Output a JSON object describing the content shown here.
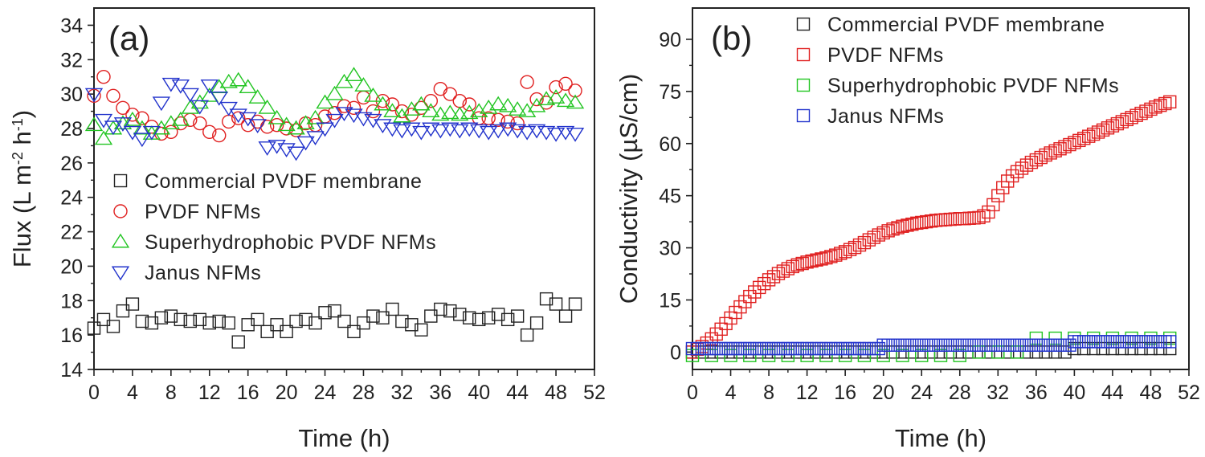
{
  "chart_data": [
    {
      "type": "scatter",
      "panel_label": "(a)",
      "xlabel": "Time (h)",
      "ylabel": {
        "main": "Flux (L m",
        "sup1": "-2",
        "mid": " h",
        "sup2": "-1",
        "end": ")"
      },
      "xlim": [
        0,
        52
      ],
      "ylim": [
        14,
        35
      ],
      "xticks": [
        "0",
        "4",
        "8",
        "12",
        "16",
        "20",
        "24",
        "28",
        "32",
        "36",
        "40",
        "44",
        "48",
        "52"
      ],
      "yticks": [
        "14",
        "16",
        "18",
        "20",
        "22",
        "24",
        "26",
        "28",
        "30",
        "32",
        "34"
      ],
      "grid": false,
      "legend_position": "lower-left",
      "series": [
        {
          "name": "Commercial  PVDF membrane",
          "marker": "square",
          "color": "#222222",
          "x": [
            0,
            1,
            2,
            3,
            4,
            5,
            6,
            7,
            8,
            9,
            10,
            11,
            12,
            13,
            14,
            15,
            16,
            17,
            18,
            19,
            20,
            21,
            22,
            23,
            24,
            25,
            26,
            27,
            28,
            29,
            30,
            31,
            32,
            33,
            34,
            35,
            36,
            37,
            38,
            39,
            40,
            41,
            42,
            43,
            44,
            45,
            46,
            47,
            48,
            49,
            50
          ],
          "y": [
            16.4,
            16.9,
            16.5,
            17.4,
            17.8,
            16.8,
            16.7,
            17.0,
            17.1,
            16.9,
            16.8,
            16.9,
            16.7,
            16.8,
            16.7,
            15.6,
            16.6,
            16.9,
            16.2,
            16.6,
            16.2,
            16.8,
            16.9,
            16.7,
            17.3,
            17.4,
            16.8,
            16.2,
            16.7,
            17.1,
            17.0,
            17.5,
            16.8,
            16.6,
            16.3,
            17.1,
            17.5,
            17.4,
            17.2,
            17.0,
            16.9,
            17.0,
            17.2,
            16.9,
            17.1,
            16.0,
            16.7,
            18.1,
            17.8,
            17.1,
            17.8
          ]
        },
        {
          "name": "PVDF NFMs",
          "marker": "circle",
          "color": "#e02020",
          "x": [
            0,
            1,
            2,
            3,
            4,
            5,
            6,
            7,
            8,
            9,
            10,
            11,
            12,
            13,
            14,
            15,
            16,
            17,
            18,
            19,
            20,
            21,
            22,
            23,
            24,
            25,
            26,
            27,
            28,
            29,
            30,
            31,
            32,
            33,
            34,
            35,
            36,
            37,
            38,
            39,
            40,
            41,
            42,
            43,
            44,
            45,
            46,
            47,
            48,
            49,
            50
          ],
          "y": [
            29.9,
            31.0,
            29.9,
            29.2,
            28.8,
            28.6,
            28.1,
            27.7,
            27.8,
            28.3,
            28.5,
            28.3,
            27.8,
            27.6,
            28.4,
            28.6,
            28.2,
            28.4,
            28.1,
            28.2,
            28.0,
            27.9,
            28.3,
            28.2,
            28.7,
            28.9,
            29.3,
            29.2,
            29.8,
            29.0,
            29.6,
            29.4,
            29.0,
            28.8,
            29.2,
            29.6,
            30.3,
            30.0,
            29.6,
            29.4,
            28.6,
            28.6,
            28.5,
            28.4,
            28.3,
            30.7,
            29.7,
            29.5,
            30.4,
            30.6,
            30.2
          ]
        },
        {
          "name": "Superhydrophobic PVDF NFMs",
          "marker": "triangle-up",
          "color": "#22c522",
          "x": [
            0,
            1,
            2,
            3,
            4,
            5,
            6,
            7,
            8,
            9,
            10,
            11,
            12,
            13,
            14,
            15,
            16,
            17,
            18,
            19,
            20,
            21,
            22,
            23,
            24,
            25,
            26,
            27,
            28,
            29,
            30,
            31,
            32,
            33,
            34,
            35,
            36,
            37,
            38,
            39,
            40,
            41,
            42,
            43,
            44,
            45,
            46,
            47,
            48,
            49,
            50
          ],
          "y": [
            28.2,
            27.4,
            28.0,
            28.3,
            28.5,
            28.0,
            27.7,
            28.0,
            28.3,
            28.5,
            29.2,
            29.5,
            29.9,
            30.4,
            30.7,
            30.8,
            30.4,
            29.8,
            29.2,
            28.6,
            28.2,
            28.0,
            28.3,
            28.6,
            29.5,
            30.0,
            30.7,
            31.1,
            30.5,
            29.9,
            29.4,
            29.0,
            28.7,
            29.1,
            29.4,
            29.0,
            28.8,
            28.9,
            28.8,
            28.9,
            29.0,
            29.2,
            29.4,
            29.3,
            29.1,
            29.0,
            29.3,
            29.7,
            29.8,
            29.6,
            29.5
          ]
        },
        {
          "name": "Janus  NFMs",
          "marker": "triangle-down",
          "color": "#2233cc",
          "x": [
            0,
            1,
            2,
            3,
            4,
            5,
            6,
            7,
            8,
            9,
            10,
            11,
            12,
            13,
            14,
            15,
            16,
            17,
            18,
            19,
            20,
            21,
            22,
            23,
            24,
            25,
            26,
            27,
            28,
            29,
            30,
            31,
            32,
            33,
            34,
            35,
            36,
            37,
            38,
            39,
            40,
            41,
            42,
            43,
            44,
            45,
            46,
            47,
            48,
            49,
            50
          ],
          "y": [
            30.0,
            28.5,
            28.1,
            28.3,
            27.8,
            27.4,
            27.8,
            29.5,
            30.6,
            30.5,
            30.0,
            29.3,
            30.5,
            29.8,
            29.2,
            28.8,
            28.6,
            28.2,
            26.9,
            27.0,
            26.8,
            26.6,
            27.2,
            27.5,
            28.0,
            28.5,
            28.9,
            28.8,
            28.6,
            28.5,
            28.2,
            28.0,
            27.9,
            28.0,
            27.8,
            28.0,
            27.9,
            28.0,
            27.9,
            28.0,
            27.9,
            27.8,
            27.9,
            28.0,
            27.9,
            27.8,
            27.9,
            27.8,
            27.7,
            27.8,
            27.7
          ]
        }
      ]
    },
    {
      "type": "scatter",
      "panel_label": "(b)",
      "xlabel": "Time (h)",
      "ylabel": {
        "main": "Conductivity (µS/cm)"
      },
      "xlim": [
        0,
        52
      ],
      "ylim": [
        -5,
        99
      ],
      "xticks": [
        "0",
        "4",
        "8",
        "12",
        "16",
        "20",
        "24",
        "28",
        "32",
        "36",
        "40",
        "44",
        "48",
        "52"
      ],
      "yticks": [
        "0",
        "15",
        "30",
        "45",
        "60",
        "75",
        "90"
      ],
      "grid": false,
      "legend_position": "top-right",
      "series": [
        {
          "name": "Commercial  PVDF membrane",
          "marker": "square-open",
          "color": "#222222",
          "x": [
            0,
            1,
            2,
            3,
            4,
            5,
            6,
            7,
            8,
            9,
            10,
            11,
            12,
            13,
            14,
            15,
            16,
            17,
            18,
            19,
            20,
            21,
            22,
            23,
            24,
            25,
            26,
            27,
            28,
            29,
            30,
            31,
            32,
            33,
            34,
            35,
            36,
            37,
            38,
            39,
            40,
            41,
            42,
            43,
            44,
            45,
            46,
            47,
            48,
            49,
            50
          ],
          "y": [
            0,
            0,
            0,
            0,
            0,
            0,
            0,
            0,
            0,
            0,
            0,
            0,
            0,
            0,
            0,
            0,
            0,
            0,
            0,
            0,
            0,
            0,
            0,
            0,
            0,
            0,
            0,
            0,
            0,
            0,
            0,
            0,
            0,
            0,
            0,
            0,
            0,
            0,
            0,
            0,
            1,
            1,
            1,
            1,
            1,
            1,
            1,
            1,
            1,
            1,
            1
          ]
        },
        {
          "name": "PVDF NFMs",
          "marker": "square-open",
          "color": "#e02020",
          "x": [
            0,
            0.5,
            1,
            1.5,
            2,
            2.5,
            3,
            3.5,
            4,
            4.5,
            5,
            5.5,
            6,
            6.5,
            7,
            7.5,
            8,
            8.5,
            9,
            9.5,
            10,
            10.5,
            11,
            11.5,
            12,
            12.5,
            13,
            13.5,
            14,
            14.5,
            15,
            15.5,
            16,
            16.5,
            17,
            17.5,
            18,
            18.5,
            19,
            19.5,
            20,
            20.5,
            21,
            21.5,
            22,
            22.5,
            23,
            23.5,
            24,
            24.5,
            25,
            25.5,
            26,
            26.5,
            27,
            27.5,
            28,
            28.5,
            29,
            29.5,
            30,
            30.5,
            31,
            31.5,
            32,
            32.5,
            33,
            33.5,
            34,
            34.5,
            35,
            35.5,
            36,
            36.5,
            37,
            37.5,
            38,
            38.5,
            39,
            39.5,
            40,
            40.5,
            41,
            41.5,
            42,
            42.5,
            43,
            43.5,
            44,
            44.5,
            45,
            45.5,
            46,
            46.5,
            47,
            47.5,
            48,
            48.5,
            49,
            49.5,
            50
          ],
          "y": [
            0,
            0.8,
            1.6,
            2.6,
            3.8,
            5.2,
            6.6,
            8.2,
            9.8,
            11.4,
            13,
            14.5,
            16,
            17.3,
            18.6,
            19.7,
            20.8,
            21.7,
            22.6,
            23.3,
            24,
            24.6,
            25.1,
            25.5,
            25.9,
            26.2,
            26.5,
            26.8,
            27.1,
            27.5,
            27.9,
            28.4,
            28.9,
            29.5,
            30.1,
            30.8,
            31.5,
            32.3,
            33,
            33.7,
            34.3,
            34.9,
            35.4,
            35.8,
            36.2,
            36.5,
            36.8,
            37.1,
            37.3,
            37.5,
            37.7,
            37.9,
            38,
            38.1,
            38.2,
            38.3,
            38.4,
            38.4,
            38.5,
            38.6,
            38.7,
            39.2,
            40.3,
            42.4,
            45,
            47.3,
            49.2,
            50.7,
            51.9,
            52.9,
            53.8,
            54.6,
            55.3,
            56,
            56.7,
            57.3,
            57.9,
            58.5,
            59.1,
            59.7,
            60.3,
            60.9,
            61.5,
            62.1,
            62.7,
            63.3,
            63.9,
            64.5,
            65.1,
            65.7,
            66.3,
            66.9,
            67.5,
            68.1,
            68.7,
            69.3,
            69.9,
            70.5,
            71,
            71.5,
            72
          ]
        },
        {
          "name": "Superhydrophobic PVDF NFMs",
          "marker": "square-open",
          "color": "#22c522",
          "x": [
            0,
            2,
            4,
            6,
            8,
            10,
            12,
            14,
            16,
            18,
            20,
            22,
            24,
            26,
            28,
            30,
            32,
            34,
            36,
            38,
            40,
            42,
            44,
            46,
            48,
            50
          ],
          "y": [
            -1,
            -1,
            -1,
            -1,
            -1,
            -1,
            -1,
            -1,
            -1,
            -1,
            -1,
            -1,
            -1,
            -1,
            -1,
            0,
            0,
            0,
            4,
            4,
            4,
            4,
            4,
            4,
            4,
            4
          ]
        },
        {
          "name": "Janus  NFMs",
          "marker": "square-open",
          "color": "#2233cc",
          "x": [
            0,
            0.5,
            1,
            1.5,
            2,
            2.5,
            3,
            3.5,
            4,
            4.5,
            5,
            5.5,
            6,
            6.5,
            7,
            7.5,
            8,
            8.5,
            9,
            9.5,
            10,
            10.5,
            11,
            11.5,
            12,
            12.5,
            13,
            13.5,
            14,
            14.5,
            15,
            15.5,
            16,
            16.5,
            17,
            17.5,
            18,
            18.5,
            19,
            19.5,
            20,
            20.5,
            21,
            21.5,
            22,
            22.5,
            23,
            23.5,
            24,
            24.5,
            25,
            25.5,
            26,
            26.5,
            27,
            27.5,
            28,
            28.5,
            29,
            29.5,
            30,
            30.5,
            31,
            31.5,
            32,
            32.5,
            33,
            33.5,
            34,
            34.5,
            35,
            35.5,
            36,
            36.5,
            37,
            37.5,
            38,
            38.5,
            39,
            39.5,
            40,
            40.5,
            41,
            41.5,
            42,
            42.5,
            43,
            43.5,
            44,
            44.5,
            45,
            45.5,
            46,
            46.5,
            47,
            47.5,
            48,
            48.5,
            49,
            49.5,
            50
          ],
          "y": [
            1,
            1,
            1,
            1,
            1,
            1,
            1,
            1,
            1,
            1,
            1,
            1,
            1,
            1,
            1,
            1,
            1,
            1,
            1,
            1,
            1,
            1,
            1,
            1,
            1,
            1,
            1,
            1,
            1,
            1,
            1,
            1,
            1,
            1,
            1,
            1,
            1,
            1,
            1,
            1,
            2,
            2,
            2,
            2,
            2,
            2,
            2,
            2,
            2,
            2,
            2,
            2,
            2,
            2,
            2,
            2,
            2,
            2,
            2,
            2,
            2,
            2,
            2,
            2,
            2,
            2,
            2,
            2,
            2,
            2,
            2,
            2,
            2,
            2,
            2,
            2,
            2,
            2,
            2,
            2,
            3,
            3,
            3,
            3,
            3,
            3,
            3,
            3,
            3,
            3,
            3,
            3,
            3,
            3,
            3,
            3,
            3,
            3,
            3,
            3,
            3
          ]
        }
      ]
    }
  ]
}
